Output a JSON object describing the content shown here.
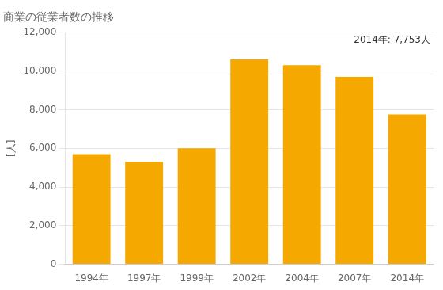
{
  "chart_data": {
    "type": "bar",
    "title": "商業の従業者数の推移",
    "ylabel": "[人]",
    "annotation": "2014年: 7,753人",
    "categories": [
      "1994年",
      "1997年",
      "1999年",
      "2002年",
      "2004年",
      "2007年",
      "2014年"
    ],
    "values": [
      5700,
      5300,
      6000,
      10600,
      10300,
      9700,
      7753
    ],
    "color": "#F5A800",
    "ylim": [
      0,
      12000
    ],
    "yticks": [
      0,
      {
        "value": 2000,
        "label": "2,000"
      },
      {
        "value": 4000,
        "label": "4,000"
      },
      {
        "value": 6000,
        "label": "6,000"
      },
      {
        "value": 8000,
        "label": "8,000"
      },
      {
        "value": 10000,
        "label": "10,000"
      },
      {
        "value": 12000,
        "label": "12,000"
      }
    ],
    "grid": true
  }
}
